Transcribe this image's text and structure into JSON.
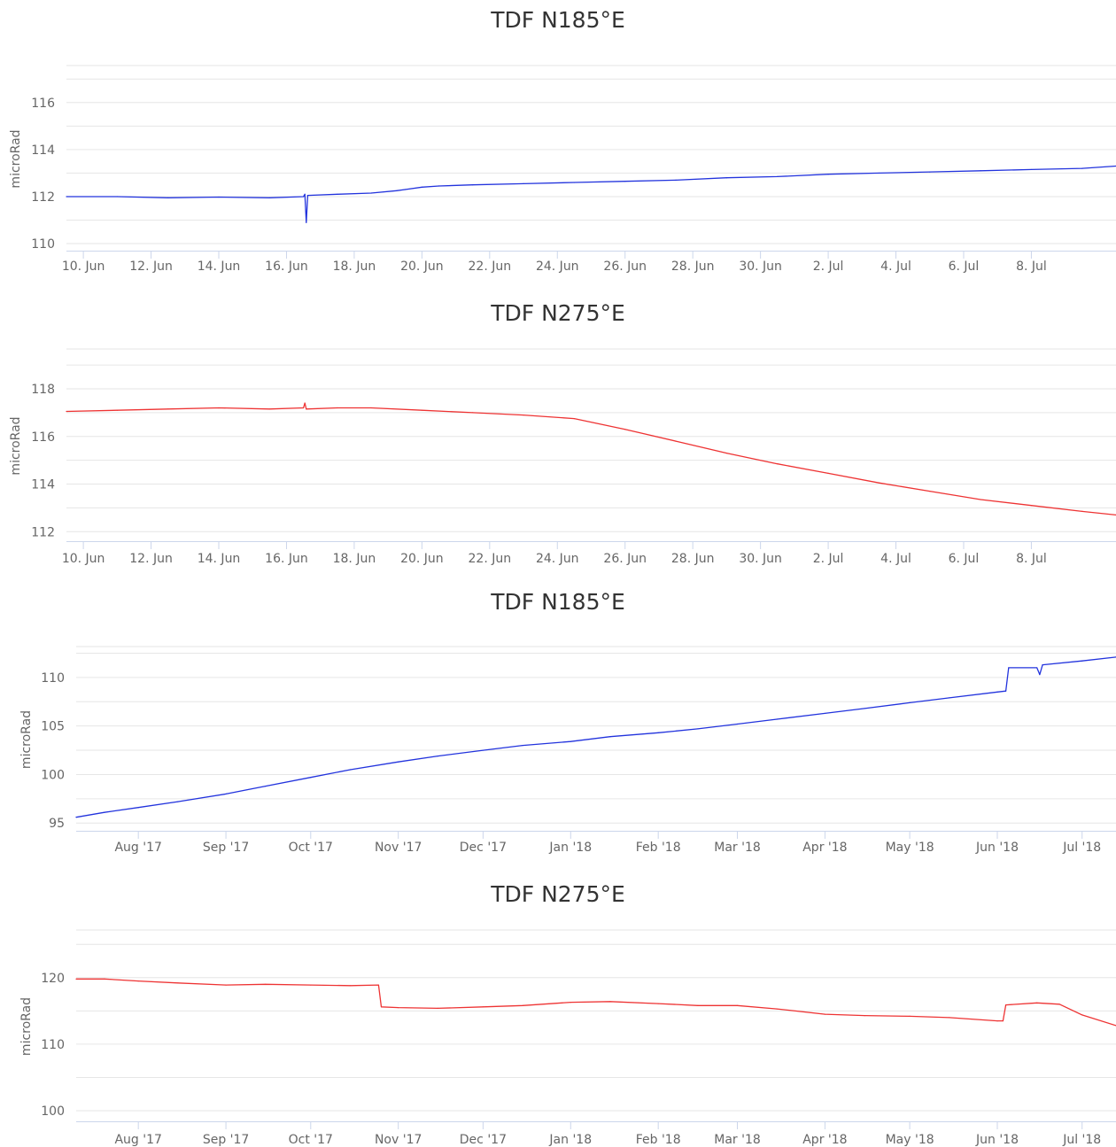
{
  "colors": {
    "series_blue": "#2233dd",
    "series_red": "#ee3333"
  },
  "chart_data": [
    {
      "type": "line",
      "title": "TDF N185°E",
      "ylabel": "microRad",
      "ylim": [
        109.7,
        117.5
      ],
      "yticks": [
        110,
        112,
        114,
        116
      ],
      "xlim": [
        "2018-06-09T12:00",
        "2018-07-10T12:00"
      ],
      "xticks": [
        [
          "2018-06-10",
          "10. Jun"
        ],
        [
          "2018-06-12",
          "12. Jun"
        ],
        [
          "2018-06-14",
          "14. Jun"
        ],
        [
          "2018-06-16",
          "16. Jun"
        ],
        [
          "2018-06-18",
          "18. Jun"
        ],
        [
          "2018-06-20",
          "20. Jun"
        ],
        [
          "2018-06-22",
          "22. Jun"
        ],
        [
          "2018-06-24",
          "24. Jun"
        ],
        [
          "2018-06-26",
          "26. Jun"
        ],
        [
          "2018-06-28",
          "28. Jun"
        ],
        [
          "2018-06-30",
          "30. Jun"
        ],
        [
          "2018-07-02",
          "2. Jul"
        ],
        [
          "2018-07-04",
          "4. Jul"
        ],
        [
          "2018-07-06",
          "6. Jul"
        ],
        [
          "2018-07-08",
          "8. Jul"
        ]
      ],
      "grid": true,
      "legend": false,
      "series": [
        {
          "color": "#2233dd",
          "x": [
            "2018-06-09T12:00",
            "2018-06-11T00:00",
            "2018-06-12T12:00",
            "2018-06-14T00:00",
            "2018-06-15T12:00",
            "2018-06-16T12:00",
            "2018-06-16T13:00",
            "2018-06-16T14:00",
            "2018-06-16T15:00",
            "2018-06-17T12:00",
            "2018-06-18T12:00",
            "2018-06-19T06:00",
            "2018-06-19T12:00",
            "2018-06-20T00:00",
            "2018-06-20T12:00",
            "2018-06-21T12:00",
            "2018-06-23T00:00",
            "2018-06-24T12:00",
            "2018-06-26T00:00",
            "2018-06-27T12:00",
            "2018-06-29T00:00",
            "2018-06-30T12:00",
            "2018-07-02T00:00",
            "2018-07-03T12:00",
            "2018-07-05T00:00",
            "2018-07-06T12:00",
            "2018-07-08T00:00",
            "2018-07-09T12:00",
            "2018-07-10T12:00"
          ],
          "y": [
            112.0,
            112.0,
            111.95,
            111.98,
            111.95,
            112.0,
            112.1,
            110.9,
            112.05,
            112.1,
            112.15,
            112.25,
            112.3,
            112.4,
            112.45,
            112.5,
            112.55,
            112.6,
            112.65,
            112.7,
            112.8,
            112.85,
            112.95,
            113.0,
            113.05,
            113.1,
            113.15,
            113.2,
            113.3
          ]
        }
      ]
    },
    {
      "type": "line",
      "title": "TDF N275°E",
      "ylabel": "microRad",
      "ylim": [
        111.6,
        119.6
      ],
      "yticks": [
        112,
        114,
        116,
        118
      ],
      "xlim": [
        "2018-06-09T12:00",
        "2018-07-10T12:00"
      ],
      "xticks": [
        [
          "2018-06-10",
          "10. Jun"
        ],
        [
          "2018-06-12",
          "12. Jun"
        ],
        [
          "2018-06-14",
          "14. Jun"
        ],
        [
          "2018-06-16",
          "16. Jun"
        ],
        [
          "2018-06-18",
          "18. Jun"
        ],
        [
          "2018-06-20",
          "20. Jun"
        ],
        [
          "2018-06-22",
          "22. Jun"
        ],
        [
          "2018-06-24",
          "24. Jun"
        ],
        [
          "2018-06-26",
          "26. Jun"
        ],
        [
          "2018-06-28",
          "28. Jun"
        ],
        [
          "2018-06-30",
          "30. Jun"
        ],
        [
          "2018-07-02",
          "2. Jul"
        ],
        [
          "2018-07-04",
          "4. Jul"
        ],
        [
          "2018-07-06",
          "6. Jul"
        ],
        [
          "2018-07-08",
          "8. Jul"
        ]
      ],
      "grid": true,
      "legend": false,
      "series": [
        {
          "color": "#ee3333",
          "x": [
            "2018-06-09T12:00",
            "2018-06-11T00:00",
            "2018-06-12T12:00",
            "2018-06-14T00:00",
            "2018-06-15T12:00",
            "2018-06-16T12:00",
            "2018-06-16T13:00",
            "2018-06-16T14:00",
            "2018-06-17T12:00",
            "2018-06-18T12:00",
            "2018-06-20T00:00",
            "2018-06-21T12:00",
            "2018-06-23T00:00",
            "2018-06-24T12:00",
            "2018-06-26T00:00",
            "2018-06-27T12:00",
            "2018-06-29T00:00",
            "2018-06-30T12:00",
            "2018-07-02T00:00",
            "2018-07-03T12:00",
            "2018-07-05T00:00",
            "2018-07-06T12:00",
            "2018-07-08T00:00",
            "2018-07-09T12:00",
            "2018-07-10T12:00"
          ],
          "y": [
            117.05,
            117.1,
            117.15,
            117.2,
            117.15,
            117.2,
            117.4,
            117.15,
            117.2,
            117.2,
            117.1,
            117.0,
            116.9,
            116.75,
            116.3,
            115.8,
            115.3,
            114.85,
            114.45,
            114.05,
            113.7,
            113.35,
            113.1,
            112.85,
            112.7
          ]
        }
      ]
    },
    {
      "type": "line",
      "title": "TDF N185°E",
      "ylabel": "microRad",
      "ylim": [
        94.2,
        113.0
      ],
      "yticks": [
        95,
        100,
        105,
        110
      ],
      "xlim": [
        "2017-07-10",
        "2018-07-13"
      ],
      "xticks": [
        [
          "2017-08-01",
          "Aug '17"
        ],
        [
          "2017-09-01",
          "Sep '17"
        ],
        [
          "2017-10-01",
          "Oct '17"
        ],
        [
          "2017-11-01",
          "Nov '17"
        ],
        [
          "2017-12-01",
          "Dec '17"
        ],
        [
          "2018-01-01",
          "Jan '18"
        ],
        [
          "2018-02-01",
          "Feb '18"
        ],
        [
          "2018-03-01",
          "Mar '18"
        ],
        [
          "2018-04-01",
          "Apr '18"
        ],
        [
          "2018-05-01",
          "May '18"
        ],
        [
          "2018-06-01",
          "Jun '18"
        ],
        [
          "2018-07-01",
          "Jul '18"
        ]
      ],
      "grid": true,
      "legend": false,
      "series": [
        {
          "color": "#2233dd",
          "x": [
            "2017-07-10",
            "2017-07-20",
            "2017-08-01",
            "2017-08-15",
            "2017-09-01",
            "2017-09-15",
            "2017-10-01",
            "2017-10-15",
            "2017-11-01",
            "2017-11-15",
            "2017-12-01",
            "2017-12-15",
            "2018-01-01",
            "2018-01-15",
            "2018-02-01",
            "2018-02-15",
            "2018-03-01",
            "2018-03-15",
            "2018-04-01",
            "2018-04-15",
            "2018-05-01",
            "2018-05-15",
            "2018-06-01",
            "2018-06-04",
            "2018-06-05",
            "2018-06-15",
            "2018-06-16",
            "2018-06-17",
            "2018-07-01",
            "2018-07-13"
          ],
          "y": [
            95.6,
            96.1,
            96.6,
            97.2,
            98.0,
            98.8,
            99.7,
            100.5,
            101.3,
            101.9,
            102.5,
            103.0,
            103.4,
            103.9,
            104.3,
            104.7,
            105.2,
            105.7,
            106.3,
            106.8,
            107.4,
            107.9,
            108.5,
            108.6,
            111.0,
            111.0,
            110.3,
            111.3,
            111.7,
            112.1
          ]
        }
      ]
    },
    {
      "type": "line",
      "title": "TDF N275°E",
      "ylabel": "microRad",
      "ylim": [
        98.4,
        126.9
      ],
      "yticks": [
        100,
        110,
        120
      ],
      "xlim": [
        "2017-07-10",
        "2018-07-13"
      ],
      "xticks": [
        [
          "2017-08-01",
          "Aug '17"
        ],
        [
          "2017-09-01",
          "Sep '17"
        ],
        [
          "2017-10-01",
          "Oct '17"
        ],
        [
          "2017-11-01",
          "Nov '17"
        ],
        [
          "2017-12-01",
          "Dec '17"
        ],
        [
          "2018-01-01",
          "Jan '18"
        ],
        [
          "2018-02-01",
          "Feb '18"
        ],
        [
          "2018-03-01",
          "Mar '18"
        ],
        [
          "2018-04-01",
          "Apr '18"
        ],
        [
          "2018-05-01",
          "May '18"
        ],
        [
          "2018-06-01",
          "Jun '18"
        ],
        [
          "2018-07-01",
          "Jul '18"
        ]
      ],
      "grid": true,
      "legend": false,
      "series": [
        {
          "color": "#ee3333",
          "x": [
            "2017-07-10",
            "2017-07-20",
            "2017-08-01",
            "2017-08-15",
            "2017-09-01",
            "2017-09-15",
            "2017-10-01",
            "2017-10-15",
            "2017-10-25",
            "2017-10-26",
            "2017-11-01",
            "2017-11-15",
            "2017-12-01",
            "2017-12-15",
            "2018-01-01",
            "2018-01-15",
            "2018-02-01",
            "2018-02-15",
            "2018-03-01",
            "2018-03-15",
            "2018-04-01",
            "2018-04-15",
            "2018-05-01",
            "2018-05-15",
            "2018-06-01",
            "2018-06-03",
            "2018-06-04",
            "2018-06-15",
            "2018-06-23",
            "2018-07-01",
            "2018-07-13"
          ],
          "y": [
            119.8,
            119.8,
            119.5,
            119.2,
            118.9,
            119.0,
            118.9,
            118.8,
            118.9,
            115.6,
            115.5,
            115.4,
            115.6,
            115.8,
            116.3,
            116.4,
            116.1,
            115.8,
            115.8,
            115.3,
            114.5,
            114.3,
            114.2,
            114.0,
            113.5,
            113.5,
            115.9,
            116.2,
            116.0,
            114.4,
            112.8
          ]
        }
      ]
    }
  ]
}
